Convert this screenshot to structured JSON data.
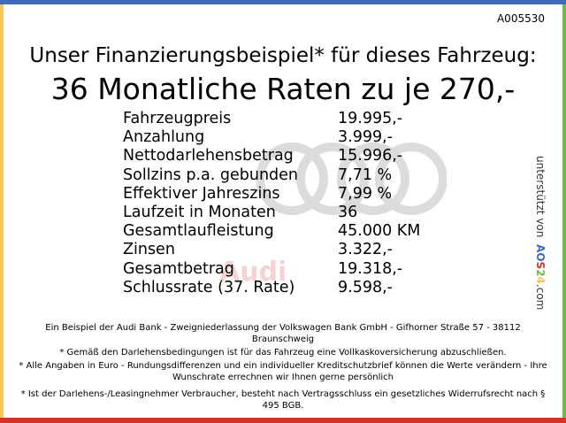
{
  "ad_code": "A005530",
  "headline": "Unser Finanzierungsbeispiel* für dieses Fahrzeug:",
  "subheadline": "36 Monatliche Raten zu je 270,-",
  "watermark_text": "Audi",
  "rows": [
    {
      "label": "Fahrzeugpreis",
      "value": "19.995,-"
    },
    {
      "label": "Anzahlung",
      "value": "3.999,-"
    },
    {
      "label": "Nettodarlehensbetrag",
      "value": "15.996,-"
    },
    {
      "label": "Sollzins p.a. gebunden",
      "value": "7,71 %"
    },
    {
      "label": "Effektiver Jahreszins",
      "value": "7,99 %"
    },
    {
      "label": "Laufzeit in Monaten",
      "value": "36"
    },
    {
      "label": "Gesamtlaufleistung",
      "value": "45.000 KM"
    },
    {
      "label": "Zinsen",
      "value": "3.322,-"
    },
    {
      "label": "Gesamtbetrag",
      "value": "19.318,-"
    },
    {
      "label": "Schlussrate (37. Rate)",
      "value": "9.598,-"
    }
  ],
  "side": {
    "prefix": "unterstützt von",
    "logo": [
      "A",
      "O",
      "S",
      "2",
      "4"
    ],
    "suffix": ".com"
  },
  "footer": [
    "Ein Beispiel der Audi Bank - Zweigniederlassung der Volkswagen Bank GmbH - Gifhorner Straße 57 - 38112 Braunschweig",
    "* Gemäß den Darlehensbedingungen ist für das Fahrzeug eine Vollkaskoversicherung abzuschließen.",
    "* Alle Angaben in Euro - Rundungsdifferenzen und ein individueller Kreditschutzbrief können die Werte verändern - Ihre Wunschrate errechnen wir Ihnen gerne persönlich",
    "* Ist der Darlehens-/Leasingnehmer Verbraucher, besteht nach Vertragsschluss ein gesetzliches Widerrufsrecht nach § 495 BGB."
  ],
  "colors": {
    "top": "#3d6bb8",
    "left": "#f6c75a",
    "right": "#6cbf3e",
    "bottom": "#d0352b"
  }
}
